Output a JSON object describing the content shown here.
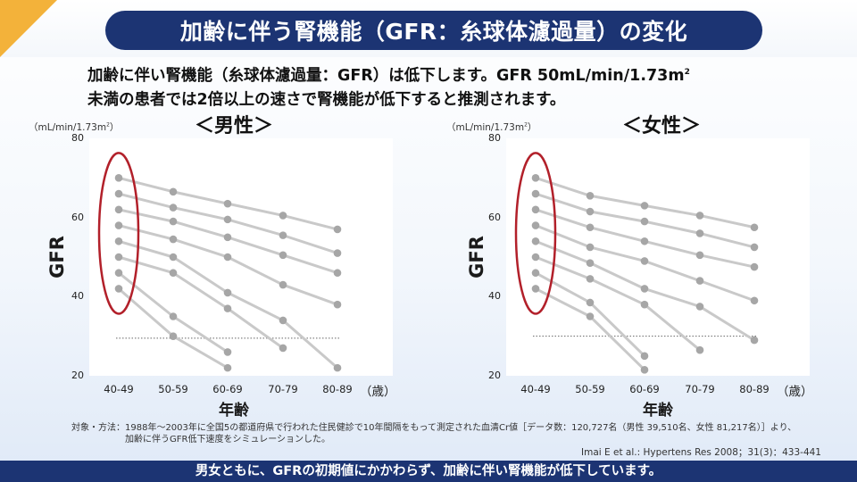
{
  "title": "加齢に伴う腎機能（GFR：糸球体濾過量）の変化",
  "lead": {
    "line1": "加齢に伴い腎機能（糸球体濾過量：GFR）は低下します。GFR 50mL/min/1.73m",
    "line1_sup": "2",
    "line2": "未満の患者では2倍以上の速さで腎機能が低下すると推測されます。"
  },
  "colors": {
    "navy": "#1c3473",
    "line": "#c9c9c9",
    "point": "#a6a6a6",
    "ellipse": "#b2202a",
    "accent": "#f3b23a"
  },
  "axis_text": {
    "unit": "（mL/min/1.73m",
    "unit_sup": "2",
    "unit_close": "）",
    "ylabel": "GFR",
    "xlabel": "年齢",
    "xunit": "（歳）"
  },
  "chart_data": [
    {
      "type": "line",
      "title": "＜男性＞",
      "ylabel": "GFR",
      "xlabel": "年齢",
      "categories": [
        "40-49",
        "50-59",
        "60-69",
        "70-79",
        "80-89"
      ],
      "ylim": [
        20,
        80
      ],
      "yticks": [
        20,
        40,
        60,
        80
      ],
      "reference_line": 29.5,
      "highlight_category": "40-49",
      "series": [
        {
          "values": [
            70,
            66.5,
            63.5,
            60.5,
            57
          ]
        },
        {
          "values": [
            66,
            62.5,
            59.5,
            55.5,
            51
          ]
        },
        {
          "values": [
            62,
            59,
            55,
            50.5,
            46
          ]
        },
        {
          "values": [
            58,
            54.5,
            50,
            43,
            38
          ]
        },
        {
          "values": [
            54,
            50,
            41,
            34,
            22
          ]
        },
        {
          "values": [
            50,
            46,
            37,
            27,
            null
          ]
        },
        {
          "values": [
            46,
            35,
            26,
            null,
            null
          ]
        },
        {
          "values": [
            42,
            30,
            22,
            null,
            null
          ]
        }
      ]
    },
    {
      "type": "line",
      "title": "＜女性＞",
      "ylabel": "GFR",
      "xlabel": "年齢",
      "categories": [
        "40-49",
        "50-59",
        "60-69",
        "70-79",
        "80-89"
      ],
      "ylim": [
        20,
        80
      ],
      "yticks": [
        20,
        40,
        60,
        80
      ],
      "reference_line": 30,
      "highlight_category": "40-49",
      "series": [
        {
          "values": [
            70,
            65.5,
            63,
            60.5,
            57.5
          ]
        },
        {
          "values": [
            66,
            61.5,
            59,
            56,
            52.5
          ]
        },
        {
          "values": [
            62,
            57.5,
            54,
            50.5,
            47.5
          ]
        },
        {
          "values": [
            58,
            52.5,
            49,
            44,
            39
          ]
        },
        {
          "values": [
            54,
            48.5,
            42,
            37.5,
            29
          ]
        },
        {
          "values": [
            50,
            44.5,
            38,
            26.5,
            null
          ]
        },
        {
          "values": [
            46,
            38.5,
            25,
            null,
            null
          ]
        },
        {
          "values": [
            42,
            35,
            21.5,
            null,
            null
          ]
        }
      ]
    }
  ],
  "note_line1": "対象・方法：1988年～2003年に全国5の都道府県で行われた住民健診で10年間隔をもって測定された血清Cr値［データ数：120,727名（男性 39,510名、女性 81,217名）］より、",
  "note_line2": "加齢に伴うGFR低下速度をシミュレーションした。",
  "citation": "Imai E et al.: Hypertens Res 2008；31(3)：433-441",
  "footer": "男女ともに、GFRの初期値にかかわらず、加齢に伴い腎機能が低下しています。"
}
